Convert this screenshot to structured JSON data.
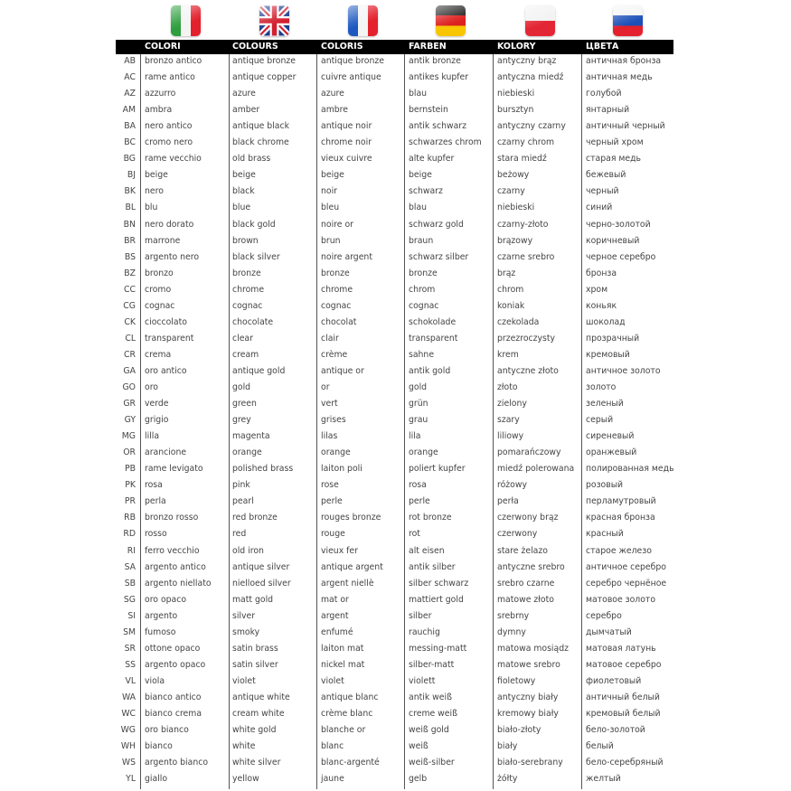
{
  "flags": [
    {
      "name": "italy-flag",
      "lang": "Italian"
    },
    {
      "name": "uk-flag",
      "lang": "English"
    },
    {
      "name": "france-flag",
      "lang": "French"
    },
    {
      "name": "germany-flag",
      "lang": "German"
    },
    {
      "name": "poland-flag",
      "lang": "Polish"
    },
    {
      "name": "russia-flag",
      "lang": "Russian"
    }
  ],
  "headers": [
    "COLORI",
    "COLOURS",
    "COLORIS",
    "FARBEN",
    "KOLORY",
    "ЦВЕТА"
  ],
  "rows": [
    [
      "AB",
      "bronzo antico",
      "antique bronze",
      "antique bronze",
      "antik bronze",
      "antyczny brąz",
      "античная бронза"
    ],
    [
      "AC",
      "rame antico",
      "antique copper",
      "cuivre antique",
      "antikes kupfer",
      "antyczna miedź",
      "античная медь"
    ],
    [
      "AZ",
      "azzurro",
      "azure",
      "azure",
      "blau",
      "niebieski",
      "голубой"
    ],
    [
      "AM",
      "ambra",
      "amber",
      "ambre",
      "bernstein",
      "bursztyn",
      "янтарный"
    ],
    [
      "BA",
      "nero antico",
      "antique black",
      "antique noir",
      "antik schwarz",
      "antyczny czarny",
      "античный черный"
    ],
    [
      "BC",
      "cromo nero",
      "black chrome",
      "chrome noir",
      "schwarzes chrom",
      "czarny chrom",
      "черный хром"
    ],
    [
      "BG",
      "rame vecchio",
      "old brass",
      "vieux cuivre",
      "alte kupfer",
      "stara miedź",
      "старая медь"
    ],
    [
      "BJ",
      "beige",
      "beige",
      "beige",
      "beige",
      "beżowy",
      "бежевый"
    ],
    [
      "BK",
      "nero",
      "black",
      "noir",
      "schwarz",
      "czarny",
      "черный"
    ],
    [
      "BL",
      "blu",
      "blue",
      "bleu",
      "blau",
      "niebieski",
      "синий"
    ],
    [
      "BN",
      "nero dorato",
      "black gold",
      "noire or",
      "schwarz gold",
      "czarny-złoto",
      "черно-золотой"
    ],
    [
      "BR",
      "marrone",
      "brown",
      "brun",
      "braun",
      "brązowy",
      "коричневый"
    ],
    [
      "BS",
      "argento nero",
      "black silver",
      "noire argent",
      "schwarz silber",
      "czarne srebro",
      "черное серебро"
    ],
    [
      "BZ",
      "bronzo",
      "bronze",
      "bronze",
      "bronze",
      "brąz",
      "бронза"
    ],
    [
      "CC",
      "cromo",
      "chrome",
      "chrome",
      "chrom",
      "chrom",
      "хром"
    ],
    [
      "CG",
      "cognac",
      "cognac",
      "cognac",
      "cognac",
      "koniak",
      "коньяк"
    ],
    [
      "CK",
      "cioccolato",
      "chocolate",
      "chocolat",
      "schokolade",
      "czekolada",
      "шоколад"
    ],
    [
      "CL",
      "transparent",
      "clear",
      "clair",
      "transparent",
      "przezroczysty",
      "прозрачный"
    ],
    [
      "CR",
      "crema",
      "cream",
      "crème",
      "sahne",
      "krem",
      "кремовый"
    ],
    [
      "GA",
      "oro antico",
      "antique gold",
      "antique or",
      "antik gold",
      "antyczne złoto",
      "античное золото"
    ],
    [
      "GO",
      "oro",
      "gold",
      "or",
      "gold",
      "złoto",
      "золото"
    ],
    [
      "GR",
      "verde",
      "green",
      "vert",
      "grün",
      "zielony",
      "зеленый"
    ],
    [
      "GY",
      "grigio",
      "grey",
      "grises",
      "grau",
      "szary",
      "серый"
    ],
    [
      "MG",
      "lilla",
      "magenta",
      "lilas",
      "lila",
      "liliowy",
      "сиреневый"
    ],
    [
      "OR",
      "arancione",
      "orange",
      "orange",
      "orange",
      "pomarańczowy",
      "оранжевый"
    ],
    [
      "PB",
      "rame levigato",
      "polished brass",
      "laiton poli",
      "poliert kupfer",
      "miedź polerowana",
      "полированная медь"
    ],
    [
      "PK",
      "rosa",
      "pink",
      "rose",
      "rosa",
      "różowy",
      "розовый"
    ],
    [
      "PR",
      "perla",
      "pearl",
      "perle",
      "perle",
      "perła",
      "перламутровый"
    ],
    [
      "RB",
      "bronzo rosso",
      "red bronze",
      "rouges bronze",
      "rot bronze",
      "czerwony brąz",
      "красная бронза"
    ],
    [
      "RD",
      "rosso",
      "red",
      "rouge",
      "rot",
      "czerwony",
      "красный"
    ],
    [
      "RI",
      "ferro vecchio",
      "old iron",
      "vieux fer",
      "alt eisen",
      "stare żelazo",
      "старое железо"
    ],
    [
      "SA",
      "argento antico",
      "antique silver",
      "antique argent",
      "antik silber",
      "antyczne srebro",
      "античное серебро"
    ],
    [
      "SB",
      "argento niellato",
      "nielloed silver",
      "argent niellè",
      "silber schwarz",
      "srebro czarne",
      "серебро чернёное"
    ],
    [
      "SG",
      "oro opaco",
      "matt gold",
      "mat or",
      "mattiert gold",
      "matowe złoto",
      "матовое золото"
    ],
    [
      "SI",
      "argento",
      "silver",
      "argent",
      "silber",
      "srebrny",
      "серебро"
    ],
    [
      "SM",
      "fumoso",
      "smoky",
      "enfumé",
      "rauchig",
      "dymny",
      "дымчатый"
    ],
    [
      "SR",
      "ottone opaco",
      "satin brass",
      "laiton mat",
      "messing-matt",
      "matowa mosiądz",
      "матовая латунь"
    ],
    [
      "SS",
      "argento opaco",
      "satin silver",
      "nickel mat",
      "silber-matt",
      "matowe srebro",
      "матовое серебро"
    ],
    [
      "VL",
      "viola",
      "violet",
      "violet",
      "violett",
      "fioletowy",
      "фиолетовый"
    ],
    [
      "WA",
      "bianco antico",
      "antique white",
      "antique blanc",
      "antik weiß",
      "antyczny biały",
      "античный белый"
    ],
    [
      "WC",
      "bianco crema",
      "cream white",
      "crème blanc",
      "creme weiß",
      "kremowy biały",
      "кремовый белый"
    ],
    [
      "WG",
      "oro bianco",
      "white gold",
      "blanche or",
      "weiß gold",
      "biało-złoty",
      "бело-золотой"
    ],
    [
      "WH",
      "bianco",
      "white",
      "blanc",
      "weiß",
      "biały",
      "белый"
    ],
    [
      "WS",
      "argento bianco",
      "white silver",
      "blanc-argenté",
      "weiß-silber",
      "biało-serebrany",
      "бело-серебряный"
    ],
    [
      "YL",
      "giallo",
      "yellow",
      "jaune",
      "gelb",
      "żółty",
      "желтый"
    ]
  ]
}
